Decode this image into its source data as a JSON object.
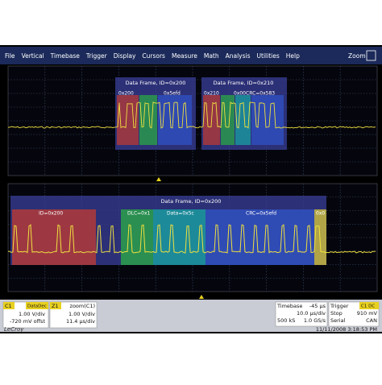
{
  "menu": {
    "items": [
      "File",
      "Vertical",
      "Timebase",
      "Trigger",
      "Display",
      "Cursors",
      "Measure",
      "Math",
      "Analysis",
      "Utilities",
      "Help"
    ],
    "zoom": "Zoom"
  },
  "upper": {
    "frames": [
      {
        "title": "Data Frame, ID=0x200",
        "fields": [
          "0x200",
          "0x5efd"
        ]
      },
      {
        "title": "Data Frame, ID=0x210",
        "fields": [
          "0x210",
          "0x00CRC=0x583"
        ]
      }
    ]
  },
  "lower": {
    "title": "Data Frame, ID=0x200",
    "fields": [
      "ID=0x200",
      "DLC=0x1",
      "Data=0x5c",
      "CRC=0x5efd",
      "0x0"
    ]
  },
  "status": {
    "c1": {
      "label": "C1",
      "tag": "DataDec",
      "lines": [
        "1.00 V/div",
        "-720 mV offst"
      ]
    },
    "z1": {
      "label": "Z1",
      "name": "zoom(C1)",
      "lines": [
        "1.00 V/div",
        "11.4 μs/div"
      ]
    },
    "timebase": {
      "label": "Timebase",
      "delay": "-45 μs",
      "lines": [
        "10.0 μs/div",
        "500 kS",
        "1.0 GS/s"
      ]
    },
    "trigger": {
      "label": "Trigger",
      "tag": "C1 DC",
      "lines": [
        "Stop",
        "910 mV",
        "Serial",
        "CAN"
      ]
    },
    "brand": "LeCroy",
    "datetime": "11/11/2008 3:18:53 PM"
  }
}
